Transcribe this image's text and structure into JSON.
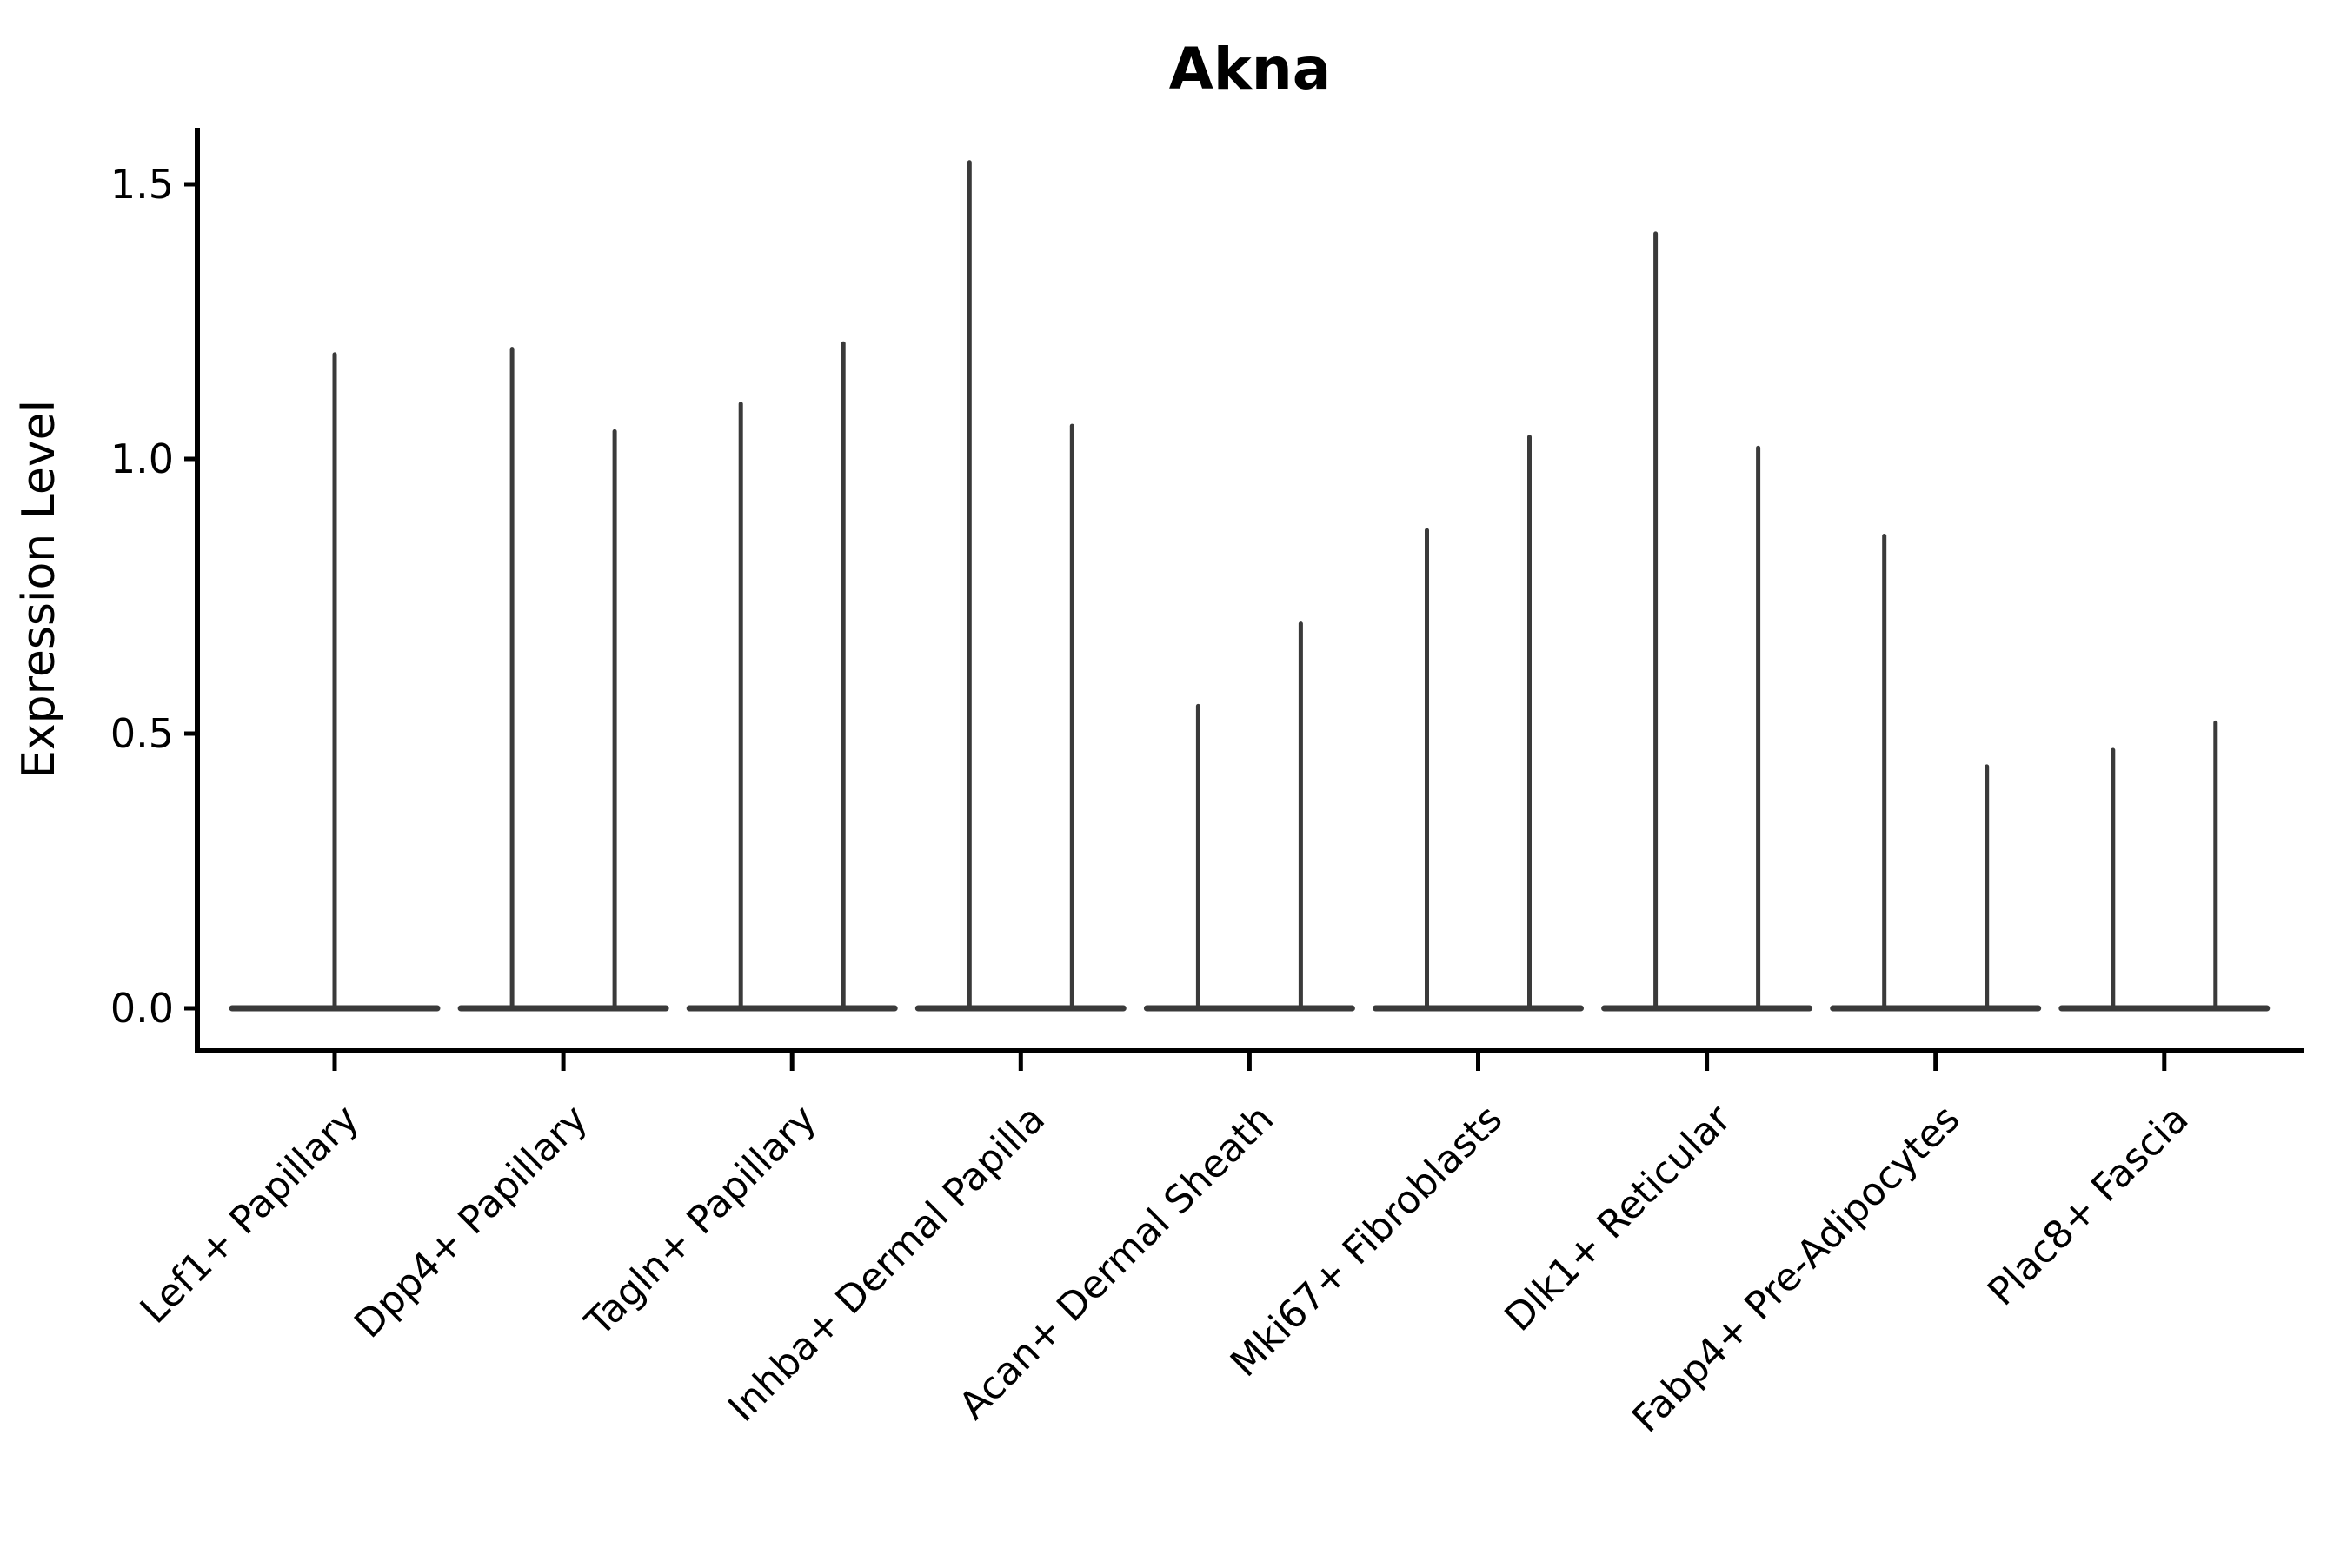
{
  "chart_data": {
    "type": "violin",
    "title": "Akna",
    "ylabel": "Expression Level",
    "xlabel": "",
    "y_ticks": [
      0.0,
      0.5,
      1.0,
      1.5
    ],
    "y_tick_labels": [
      "0.0",
      "0.5",
      "1.0",
      "1.5"
    ],
    "ylim": [
      -0.08,
      1.6
    ],
    "grid": false,
    "legend": "none",
    "background_color": "#ffffff",
    "violin_stroke_color": "#3a3a3a",
    "axis_color": "#000000",
    "baseline_value": 0.0,
    "categories": [
      "Lef1+ Papillary",
      "Dpp4+ Papillary",
      "Tagln+ Papillary",
      "Inhba+ Dermal Papilla",
      "Acan+ Dermal Sheath",
      "Mki67+ Fibroblasts",
      "Dlk1+ Reticular",
      "Fabp4+ Pre-Adipocytes",
      "Plac8+ Fascia"
    ],
    "violins": [
      {
        "category": "Lef1+ Papillary",
        "spike_max_values": [
          1.19
        ]
      },
      {
        "category": "Dpp4+ Papillary",
        "spike_max_values": [
          1.2,
          1.05
        ]
      },
      {
        "category": "Tagln+ Papillary",
        "spike_max_values": [
          1.1,
          1.21
        ]
      },
      {
        "category": "Inhba+ Dermal Papilla",
        "spike_max_values": [
          1.54,
          1.06
        ]
      },
      {
        "category": "Acan+ Dermal Sheath",
        "spike_max_values": [
          0.55,
          0.7
        ]
      },
      {
        "category": "Mki67+ Fibroblasts",
        "spike_max_values": [
          0.87,
          1.04
        ]
      },
      {
        "category": "Dlk1+ Reticular",
        "spike_max_values": [
          1.41,
          1.02
        ]
      },
      {
        "category": "Fabp4+ Pre-Adipocytes",
        "spike_max_values": [
          0.86,
          0.44
        ]
      },
      {
        "category": "Plac8+ Fascia",
        "spike_max_values": [
          0.47,
          0.52
        ]
      }
    ]
  }
}
